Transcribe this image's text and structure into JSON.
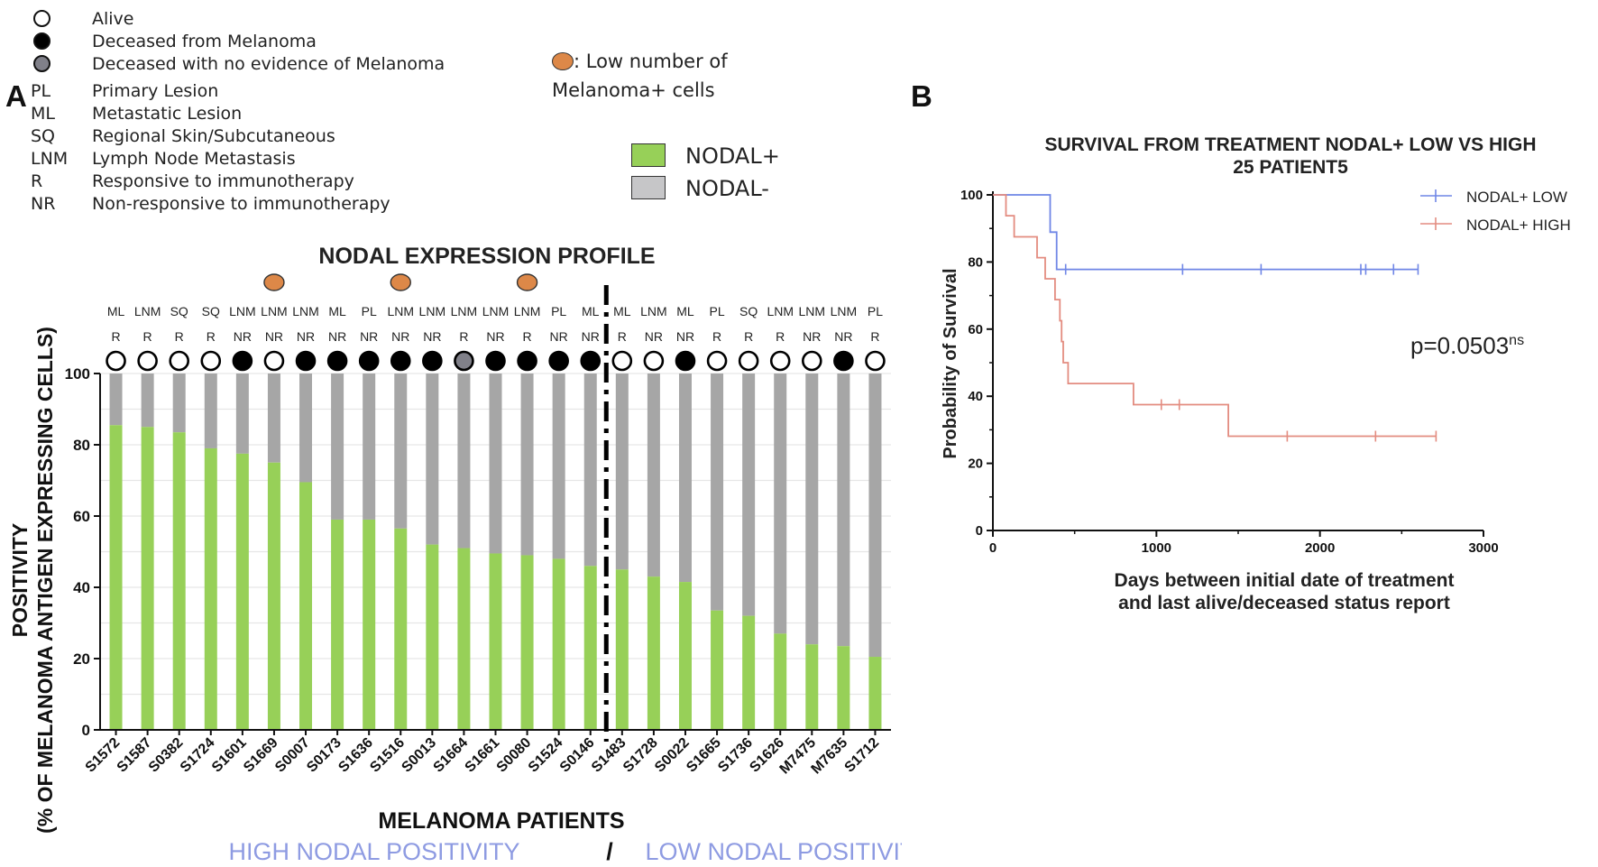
{
  "legend": {
    "alive": "Alive",
    "deceased_melanoma": "Deceased from Melanoma",
    "deceased_no_evidence": "Deceased with no evidence of Melanoma",
    "abbreviations": [
      {
        "code": "PL",
        "text": "Primary Lesion"
      },
      {
        "code": "ML",
        "text": "Metastatic Lesion"
      },
      {
        "code": "SQ",
        "text": "Regional Skin/Subcutaneous"
      },
      {
        "code": "LNM",
        "text": "Lymph Node Metastasis"
      },
      {
        "code": "R",
        "text": "Responsive to immunotherapy"
      },
      {
        "code": "NR",
        "text": "Non-responsive to immunotherapy"
      }
    ],
    "low_cells_prefix": ": Low number of",
    "low_cells_suffix": "Melanoma+ cells",
    "nodal_pos": "NODAL+",
    "nodal_neg": "NODAL-"
  },
  "colors": {
    "nodal_pos": "#97d058",
    "nodal_neg": "#a6a6a6",
    "orange": "#dd8848",
    "group_label": "#8e9be2",
    "km_low": "#6f86e6",
    "km_high": "#e38c80",
    "dead": "#000000",
    "no_evidence": "#808089"
  },
  "panel_a": {
    "letter": "A",
    "title": "NODAL EXPRESSION PROFILE",
    "xlabel": "MELANOMA PATIENTS",
    "ylabel_line1": "POSITIVITY",
    "ylabel_line2": "(% OF MELANOMA ANTIGEN EXPRESSING CELLS)",
    "group_high": "HIGH NODAL POSITIVITY",
    "group_low": "LOW NODAL POSITIVITY",
    "group_separator": "/"
  },
  "chart_data": [
    {
      "type": "bar",
      "stacked": true,
      "title": "NODAL EXPRESSION PROFILE",
      "xlabel": "MELANOMA PATIENTS",
      "ylabel": "POSITIVITY (% OF MELANOMA ANTIGEN EXPRESSING CELLS)",
      "ylim": [
        0,
        100
      ],
      "yticks": [
        0,
        20,
        40,
        60,
        80,
        100
      ],
      "grid": true,
      "categories": [
        "S1572",
        "S1587",
        "S0382",
        "S1724",
        "S1601",
        "S1669",
        "S0007",
        "S0173",
        "S1636",
        "S1516",
        "S0013",
        "S1664",
        "S1661",
        "S0080",
        "S1524",
        "S0146",
        "S1483",
        "S1728",
        "S0022",
        "S1665",
        "S1736",
        "S1626",
        "M7475",
        "M7635",
        "S1712"
      ],
      "lesion": [
        "ML",
        "LNM",
        "SQ",
        "SQ",
        "LNM",
        "LNM",
        "LNM",
        "ML",
        "PL",
        "LNM",
        "LNM",
        "LNM",
        "LNM",
        "LNM",
        "PL",
        "ML",
        "ML",
        "LNM",
        "ML",
        "PL",
        "SQ",
        "LNM",
        "LNM",
        "LNM",
        "PL"
      ],
      "response": [
        "R",
        "R",
        "R",
        "R",
        "NR",
        "NR",
        "NR",
        "NR",
        "NR",
        "NR",
        "NR",
        "R",
        "NR",
        "R",
        "NR",
        "NR",
        "R",
        "NR",
        "NR",
        "R",
        "R",
        "R",
        "NR",
        "NR",
        "R"
      ],
      "status": [
        "alive",
        "alive",
        "alive",
        "alive",
        "dead",
        "alive",
        "dead",
        "dead",
        "dead",
        "dead",
        "dead",
        "no_evidence",
        "dead",
        "dead",
        "dead",
        "dead",
        "alive",
        "alive",
        "dead",
        "alive",
        "alive",
        "alive",
        "alive",
        "dead",
        "alive"
      ],
      "low_cells": [
        false,
        false,
        false,
        false,
        false,
        true,
        false,
        false,
        false,
        true,
        false,
        false,
        false,
        true,
        false,
        false,
        false,
        false,
        false,
        false,
        false,
        false,
        false,
        false,
        false
      ],
      "split_after_index": 15,
      "series": [
        {
          "name": "NODAL+",
          "values": [
            85.5,
            85,
            83.5,
            79,
            77.5,
            75,
            69.5,
            59,
            59,
            56.5,
            52,
            51,
            49.5,
            49,
            48,
            46,
            45,
            43,
            41.5,
            33.5,
            32,
            27,
            24,
            23.5,
            20.5
          ]
        },
        {
          "name": "NODAL-",
          "values": [
            14.5,
            15,
            16.5,
            21,
            22.5,
            25,
            30.5,
            41,
            41,
            43.5,
            48,
            49,
            50.5,
            51,
            52,
            54,
            55,
            57,
            58.5,
            66.5,
            68,
            73,
            76,
            76.5,
            79.5
          ]
        }
      ]
    },
    {
      "type": "line",
      "title": "SURVIVAL FROM TREATMENT NODAL+ LOW VS HIGH",
      "subtitle": "25 PATIENT5",
      "xlabel": "Days between initial date of treatment and last alive/deceased status report",
      "ylabel": "Probability of Survival",
      "xlim": [
        0,
        3000
      ],
      "ylim": [
        0,
        100
      ],
      "xticks": [
        0,
        1000,
        2000,
        3000
      ],
      "yticks": [
        0,
        20,
        40,
        60,
        80,
        100
      ],
      "legend_position": "top-right",
      "annotation": {
        "text": "p=0.0503",
        "sup": "ns"
      },
      "series": [
        {
          "name": "NODAL+ LOW",
          "steps": [
            [
              0,
              100
            ],
            [
              350,
              100
            ],
            [
              350,
              88.9
            ],
            [
              390,
              88.9
            ],
            [
              390,
              77.8
            ],
            [
              2600,
              77.8
            ]
          ],
          "censored": [
            [
              445,
              77.8
            ],
            [
              1160,
              77.8
            ],
            [
              1640,
              77.8
            ],
            [
              2250,
              77.8
            ],
            [
              2280,
              77.8
            ],
            [
              2450,
              77.8
            ],
            [
              2600,
              77.8
            ]
          ]
        },
        {
          "name": "NODAL+ HIGH",
          "steps": [
            [
              0,
              100
            ],
            [
              80,
              100
            ],
            [
              80,
              93.8
            ],
            [
              130,
              93.8
            ],
            [
              130,
              87.5
            ],
            [
              270,
              87.5
            ],
            [
              270,
              81.3
            ],
            [
              320,
              81.3
            ],
            [
              320,
              75
            ],
            [
              380,
              75
            ],
            [
              380,
              68.8
            ],
            [
              410,
              68.8
            ],
            [
              410,
              62.5
            ],
            [
              420,
              62.5
            ],
            [
              420,
              56.3
            ],
            [
              430,
              56.3
            ],
            [
              430,
              50
            ],
            [
              460,
              50
            ],
            [
              460,
              43.8
            ],
            [
              860,
              43.8
            ],
            [
              860,
              37.5
            ],
            [
              1440,
              37.5
            ],
            [
              1440,
              28.1
            ],
            [
              2710,
              28.1
            ]
          ],
          "censored": [
            [
              1030,
              37.5
            ],
            [
              1140,
              37.5
            ],
            [
              1800,
              28.1
            ],
            [
              2340,
              28.1
            ],
            [
              2710,
              28.1
            ]
          ]
        }
      ]
    }
  ]
}
